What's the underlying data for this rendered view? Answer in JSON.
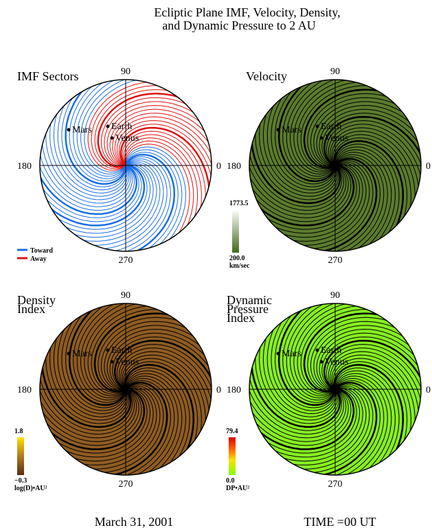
{
  "header": {
    "lines": [
      "Ecliptic Plane IMF, Velocity, Density,",
      "and Dynamic Pressure to  2 AU"
    ]
  },
  "panels": [
    {
      "title": [
        "IMF Sectors"
      ],
      "angles": [
        "90",
        "180",
        "0",
        "270"
      ],
      "planets": [
        "Mars",
        "Earth",
        "Venus"
      ],
      "legend": [
        "Toward",
        "Away"
      ]
    },
    {
      "title": [
        "Velocity"
      ],
      "angles": [
        "90",
        "180",
        "0",
        "270"
      ],
      "planets": [
        "Mars",
        "Earth",
        "Venus"
      ],
      "colorbar": {
        "max": "1773.5",
        "min": "200.0",
        "unit": "km/sec"
      }
    },
    {
      "title": [
        "Density",
        "Index"
      ],
      "angles": [
        "90",
        "180",
        "0",
        "270"
      ],
      "planets": [
        "Mars",
        "Earth",
        "Venus"
      ],
      "colorbar": {
        "max": "1.8",
        "min": "−0.3",
        "unit": "log(D)•AU²"
      }
    },
    {
      "title": [
        "Dynamic",
        "Pressure",
        "Index"
      ],
      "angles": [
        "90",
        "180",
        "0",
        "270"
      ],
      "planets": [
        "Mars",
        "Earth",
        "Venus"
      ],
      "colorbar": {
        "max": "79.4",
        "min": "0.0",
        "unit": "DP•AU²"
      }
    }
  ],
  "footer": {
    "date": "March 31, 2001",
    "time": "TIME =00 UT"
  }
}
